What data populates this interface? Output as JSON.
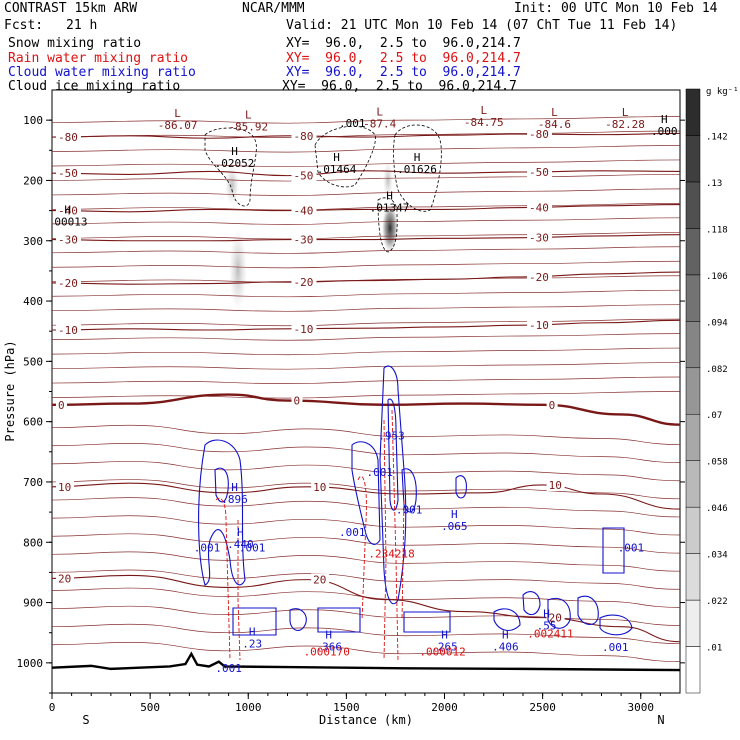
{
  "header": {
    "title": "CONTRAST 15km ARW",
    "org": "NCAR/MMM",
    "init": "Init: 00 UTC Mon 10 Feb 14",
    "fcst_label": "Fcst:",
    "fcst_value": "21 h",
    "valid": "Valid: 21 UTC Mon 10 Feb 14 (07 ChT Tue 11 Feb 14)"
  },
  "fields": [
    {
      "name": "Snow mixing ratio",
      "xy": "XY=  96.0,  2.5 to  96.0,214.7",
      "color": "#000000"
    },
    {
      "name": "Rain water mixing ratio",
      "xy": "XY=  96.0,  2.5 to  96.0,214.7",
      "color": "#dd1111"
    },
    {
      "name": "Cloud water mixing ratio",
      "xy": "XY=  96.0,  2.5 to  96.0,214.7",
      "color": "#1111cc"
    },
    {
      "name": "Cloud ice mixing ratio",
      "xy": "XY=  96.0,  2.5 to  96.0,214.7",
      "color": "#000000"
    }
  ],
  "colors": {
    "temperature": "#7a1818",
    "rain": "#dd1111",
    "cloud_water": "#1111cc",
    "cloud_ice": "#000000",
    "terrain": "#000000"
  },
  "chart_data": {
    "type": "contour",
    "xlabel": "Distance (km)",
    "ylabel": "Pressure (hPa)",
    "xlim": [
      0,
      3200
    ],
    "ylim": [
      1050,
      50
    ],
    "x_ticks": [
      0,
      500,
      1000,
      1500,
      2000,
      2500,
      3000
    ],
    "y_ticks": [
      100,
      200,
      300,
      400,
      500,
      600,
      700,
      800,
      900,
      1000
    ],
    "endpoints": {
      "left": "S",
      "right": "N"
    },
    "colorbar": {
      "unit": "g kg⁻¹",
      "ticks": [
        ".01",
        ".022",
        ".034",
        ".046",
        ".058",
        ".07",
        ".082",
        ".094",
        ".106",
        ".118",
        ".13",
        ".142"
      ]
    },
    "temperature_contours": [
      {
        "label": "-80",
        "points": [
          [
            0,
            128
          ],
          [
            400,
            126
          ],
          [
            800,
            130
          ],
          [
            1200,
            126
          ],
          [
            1600,
            128
          ],
          [
            2000,
            125
          ],
          [
            2400,
            123
          ],
          [
            2800,
            124
          ],
          [
            3200,
            122
          ]
        ]
      },
      {
        "label": "-50",
        "points": [
          [
            0,
            188
          ],
          [
            400,
            190
          ],
          [
            800,
            185
          ],
          [
            1200,
            192
          ],
          [
            1600,
            184
          ],
          [
            2000,
            188
          ],
          [
            2400,
            186
          ],
          [
            2800,
            184
          ],
          [
            3200,
            185
          ]
        ]
      },
      {
        "label": "-40",
        "points": [
          [
            0,
            250
          ],
          [
            400,
            252
          ],
          [
            800,
            248
          ],
          [
            1200,
            250
          ],
          [
            1600,
            248
          ],
          [
            2000,
            248
          ],
          [
            2400,
            245
          ],
          [
            2800,
            242
          ],
          [
            3200,
            240
          ]
        ]
      },
      {
        "label": "-30",
        "points": [
          [
            0,
            298
          ],
          [
            400,
            300
          ],
          [
            800,
            300
          ],
          [
            1200,
            298
          ],
          [
            1600,
            298
          ],
          [
            2000,
            296
          ],
          [
            2400,
            295
          ],
          [
            2800,
            292
          ],
          [
            3200,
            290
          ]
        ]
      },
      {
        "label": "-20",
        "points": [
          [
            0,
            370
          ],
          [
            400,
            372
          ],
          [
            800,
            371
          ],
          [
            1200,
            368
          ],
          [
            1600,
            366
          ],
          [
            2000,
            364
          ],
          [
            2400,
            360
          ],
          [
            2800,
            355
          ],
          [
            3200,
            352
          ]
        ]
      },
      {
        "label": "-10",
        "points": [
          [
            0,
            448
          ],
          [
            400,
            446
          ],
          [
            800,
            448
          ],
          [
            1200,
            446
          ],
          [
            1600,
            445
          ],
          [
            2000,
            443
          ],
          [
            2400,
            440
          ],
          [
            2800,
            436
          ],
          [
            3200,
            432
          ]
        ]
      },
      {
        "label": "0",
        "bold": true,
        "points": [
          [
            0,
            572
          ],
          [
            400,
            570
          ],
          [
            900,
            555
          ],
          [
            1200,
            565
          ],
          [
            1700,
            572
          ],
          [
            2100,
            570
          ],
          [
            2500,
            572
          ],
          [
            2900,
            588
          ],
          [
            3200,
            605
          ]
        ]
      },
      {
        "label": "10",
        "points": [
          [
            0,
            708
          ],
          [
            400,
            702
          ],
          [
            900,
            718
          ],
          [
            1300,
            708
          ],
          [
            1800,
            720
          ],
          [
            2200,
            718
          ],
          [
            2500,
            705
          ],
          [
            2800,
            720
          ],
          [
            3200,
            745
          ]
        ]
      },
      {
        "label": "20",
        "points": [
          [
            0,
            860
          ],
          [
            400,
            855
          ],
          [
            900,
            875
          ],
          [
            1300,
            862
          ],
          [
            1700,
            895
          ],
          [
            2100,
            915
          ],
          [
            2500,
            925
          ],
          [
            2900,
            940
          ],
          [
            3200,
            965
          ]
        ]
      }
    ],
    "extrema": [
      {
        "label": "L",
        "value": "-86.07",
        "x": 640,
        "p": 95
      },
      {
        "label": "L",
        "value": "-85.92",
        "x": 1000,
        "p": 97
      },
      {
        "label": "L",
        "value": "-87.4",
        "x": 1670,
        "p": 92
      },
      {
        "label": "L",
        "value": "-84.75",
        "x": 2200,
        "p": 90
      },
      {
        "label": "L",
        "value": "-84.6",
        "x": 2560,
        "p": 93
      },
      {
        "label": "L",
        "value": "-82.28",
        "x": 2920,
        "p": 93
      },
      {
        "label": "H",
        "value": ".02052",
        "x": 930,
        "p": 158
      },
      {
        "label": "H",
        "value": ".01464",
        "x": 1450,
        "p": 168
      },
      {
        "label": "H",
        "value": ".01626",
        "x": 1860,
        "p": 168
      },
      {
        "label": "H",
        "value": ".01347",
        "x": 1720,
        "p": 232
      },
      {
        "label": "H",
        "value": ".00013",
        "x": 80,
        "p": 255
      },
      {
        "label": "H",
        "value": ".000",
        "x": 3120,
        "p": 105
      },
      {
        "label": "",
        "value": ".001",
        "x": 1530,
        "p": 111
      },
      {
        "label": "",
        "value": ".953",
        "x": 1730,
        "p": 630
      },
      {
        "label": "H",
        "value": ".896",
        "x": 930,
        "p": 715
      },
      {
        "label": "",
        "value": ".001",
        "x": 1670,
        "p": 690
      },
      {
        "label": "",
        "value": ".001",
        "x": 1820,
        "p": 752
      },
      {
        "label": "H",
        "value": ".065",
        "x": 2050,
        "p": 760
      },
      {
        "label": "",
        "value": ".001",
        "x": 1530,
        "p": 790
      },
      {
        "label": "H",
        "value": ".440",
        "x": 960,
        "p": 790
      },
      {
        "label": "",
        "value": ".001",
        "x": 790,
        "p": 815
      },
      {
        "label": "",
        "value": ".001",
        "x": 1020,
        "p": 815
      },
      {
        "label": "",
        "value": ".234218",
        "x": 1730,
        "p": 825
      },
      {
        "label": "",
        "value": ".001",
        "x": 2950,
        "p": 815
      },
      {
        "label": "H",
        "value": ".23",
        "x": 1020,
        "p": 955
      },
      {
        "label": "H",
        "value": ".366",
        "x": 1410,
        "p": 960
      },
      {
        "label": "",
        "value": ".000170",
        "x": 1400,
        "p": 988
      },
      {
        "label": "H",
        "value": ".265",
        "x": 2000,
        "p": 960
      },
      {
        "label": "",
        "value": ".000012",
        "x": 1990,
        "p": 988
      },
      {
        "label": "H",
        "value": ".406",
        "x": 2310,
        "p": 960
      },
      {
        "label": "H",
        "value": ".55",
        "x": 2520,
        "p": 925
      },
      {
        "label": "",
        "value": ".002411",
        "x": 2540,
        "p": 958
      },
      {
        "label": "",
        "value": ".001",
        "x": 2870,
        "p": 980
      },
      {
        "label": "",
        "value": ".001",
        "x": 900,
        "p": 1015
      }
    ],
    "terrain": [
      [
        0,
        1008
      ],
      [
        200,
        1005
      ],
      [
        300,
        1010
      ],
      [
        600,
        1006
      ],
      [
        680,
        1002
      ],
      [
        710,
        985
      ],
      [
        740,
        1003
      ],
      [
        800,
        1006
      ],
      [
        850,
        998
      ],
      [
        880,
        1006
      ],
      [
        1200,
        1007
      ],
      [
        1800,
        1009
      ],
      [
        2400,
        1010
      ],
      [
        3200,
        1012
      ]
    ]
  }
}
